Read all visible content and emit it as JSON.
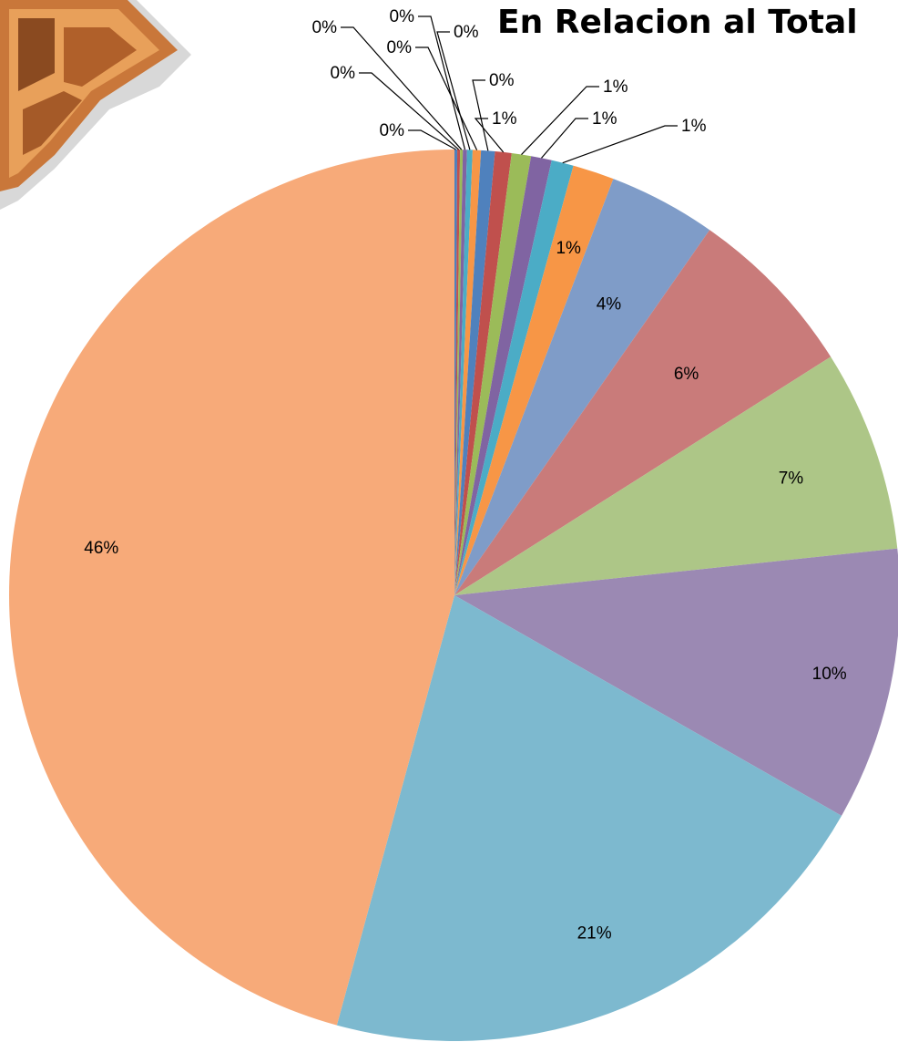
{
  "chart_data": {
    "type": "pie",
    "title": "En Relacion al Total",
    "labels_format": "percent",
    "slices": [
      {
        "value": 0.1,
        "label": "0%",
        "color": "#4f81bd"
      },
      {
        "value": 0.1,
        "label": "0%",
        "color": "#c0504d"
      },
      {
        "value": 0.1,
        "label": "0%",
        "color": "#9bbb59"
      },
      {
        "value": 0.15,
        "label": "0%",
        "color": "#8064a2"
      },
      {
        "value": 0.2,
        "label": "0%",
        "color": "#4bacc6"
      },
      {
        "value": 0.3,
        "label": "0%",
        "color": "#f79646"
      },
      {
        "value": 0.5,
        "label": "0%",
        "color": "#4f81bd"
      },
      {
        "value": 0.6,
        "label": "1%",
        "color": "#c0504d"
      },
      {
        "value": 0.7,
        "label": "1%",
        "color": "#9bbb59"
      },
      {
        "value": 0.75,
        "label": "1%",
        "color": "#8064a2"
      },
      {
        "value": 0.8,
        "label": "1%",
        "color": "#4bacc6"
      },
      {
        "value": 1.5,
        "label": "1%",
        "color": "#f79646"
      },
      {
        "value": 3.9,
        "label": "4%",
        "color": "#7f9cc8"
      },
      {
        "value": 6.3,
        "label": "6%",
        "color": "#c97b7a"
      },
      {
        "value": 7.3,
        "label": "7%",
        "color": "#adc687"
      },
      {
        "value": 9.9,
        "label": "10%",
        "color": "#9b89b3"
      },
      {
        "value": 21.0,
        "label": "21%",
        "color": "#7db9cf"
      },
      {
        "value": 45.7,
        "label": "46%",
        "color": "#f7aa79"
      }
    ]
  }
}
